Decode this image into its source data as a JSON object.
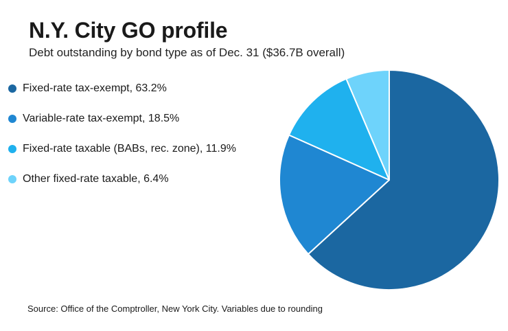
{
  "title": "N.Y. City GO profile",
  "subtitle": "Debt outstanding by bond type as of Dec. 31 ($36.7B overall)",
  "source": "Source: Office of the Comptroller, New York City. Variables due to rounding",
  "chart_data": {
    "type": "pie",
    "title": "N.Y. City GO profile",
    "subtitle": "Debt outstanding by bond type as of Dec. 31 ($36.7B overall)",
    "legend_position": "left",
    "slices": [
      {
        "label": "Fixed-rate tax-exempt, 63.2%",
        "name": "Fixed-rate tax-exempt",
        "value": 63.2,
        "color": "#1b67a1"
      },
      {
        "label": "Variable-rate tax-exempt, 18.5%",
        "name": "Variable-rate tax-exempt",
        "value": 18.5,
        "color": "#1f87d2"
      },
      {
        "label": "Fixed-rate taxable (BABs, rec. zone), 11.9%",
        "name": "Fixed-rate taxable (BABs, rec. zone)",
        "value": 11.9,
        "color": "#1fb1ee"
      },
      {
        "label": "Other fixed-rate taxable, 6.4%",
        "name": "Other fixed-rate taxable",
        "value": 6.4,
        "color": "#6ed3fb"
      }
    ]
  }
}
